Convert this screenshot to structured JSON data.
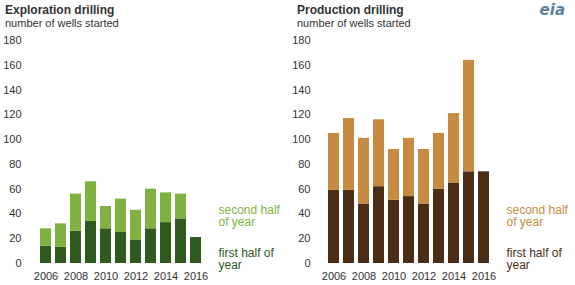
{
  "logo": "eia",
  "chart_data": [
    {
      "type": "bar",
      "title": "Exploration drilling",
      "subtitle": "number of wells started",
      "categories": [
        "2006",
        null,
        "2008",
        null,
        "2010",
        null,
        "2012",
        null,
        "2014",
        null,
        "2016"
      ],
      "series": [
        {
          "name": "first half of year",
          "color": "#2f5a1e",
          "values": [
            14,
            13,
            26,
            34,
            28,
            25,
            19,
            28,
            33,
            36,
            21
          ]
        },
        {
          "name": "second half of year",
          "color": "#7fb241",
          "values": [
            14,
            19,
            30,
            32,
            18,
            27,
            24,
            32,
            24,
            20,
            null
          ]
        }
      ],
      "stacked": true,
      "legend": "bottom-right",
      "grid": false,
      "ylim": [
        0,
        180
      ],
      "yticks": [
        0,
        20,
        40,
        60,
        80,
        100,
        120,
        140,
        160,
        180
      ]
    },
    {
      "type": "bar",
      "title": "Production drilling",
      "subtitle": "number of wells started",
      "categories": [
        "2006",
        null,
        "2008",
        null,
        "2010",
        null,
        "2012",
        null,
        "2014",
        null,
        "2016"
      ],
      "series": [
        {
          "name": "first half of year",
          "color": "#4b2d16",
          "values": [
            59,
            59,
            48,
            62,
            51,
            54,
            48,
            60,
            65,
            74,
            74
          ]
        },
        {
          "name": "second half of year",
          "color": "#c68a41",
          "values": [
            46,
            58,
            53,
            54,
            41,
            47,
            44,
            45,
            56,
            90,
            null
          ]
        }
      ],
      "stacked": true,
      "legend": "bottom-right",
      "grid": false,
      "ylim": [
        0,
        180
      ],
      "yticks": [
        0,
        20,
        40,
        60,
        80,
        100,
        120,
        140,
        160,
        180
      ]
    }
  ]
}
